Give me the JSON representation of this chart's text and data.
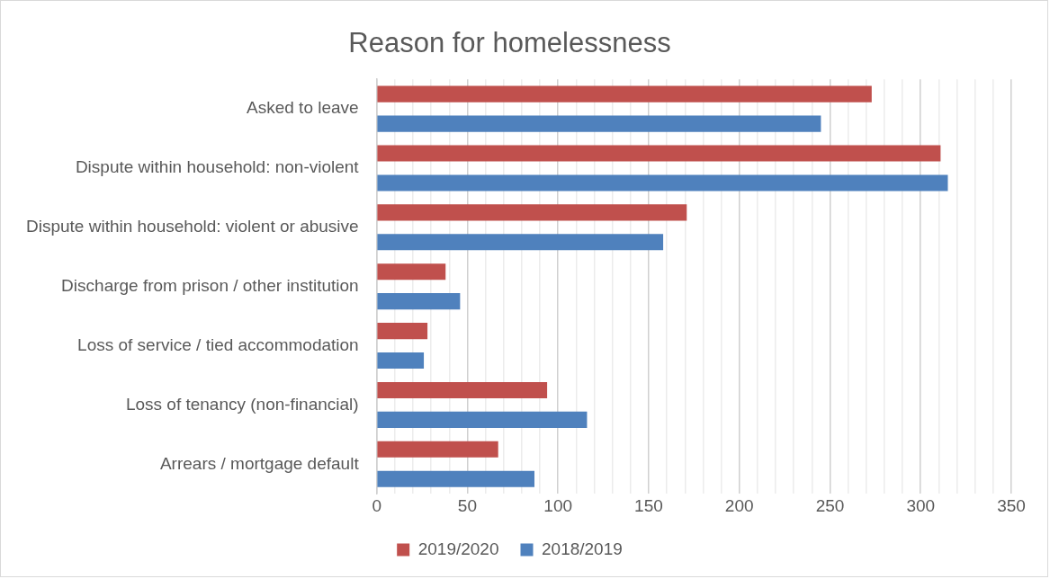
{
  "chart_data": {
    "type": "bar",
    "orientation": "horizontal",
    "title": "Reason for homelessness",
    "categories": [
      "Asked to leave",
      "Dispute within household: non-violent",
      "Dispute within household: violent or abusive",
      "Discharge from prison / other institution",
      "Loss of service / tied accommodation",
      "Loss of tenancy (non-financial)",
      "Arrears / mortgage default"
    ],
    "series": [
      {
        "name": "2019/2020",
        "color": "#c0504d",
        "values": [
          273,
          311,
          171,
          38,
          28,
          94,
          67
        ]
      },
      {
        "name": "2018/2019",
        "color": "#4f81bd",
        "values": [
          245,
          315,
          158,
          46,
          26,
          116,
          87
        ]
      }
    ],
    "xlim": [
      0,
      350
    ],
    "xticks": [
      0,
      {
        "value": 10,
        "label": null
      },
      {
        "value": 20,
        "label": null
      },
      {
        "value": 30,
        "label": null
      },
      {
        "value": 40,
        "label": null
      },
      50,
      {
        "value": 60,
        "label": null
      },
      {
        "value": 70,
        "label": null
      },
      {
        "value": 80,
        "label": null
      },
      {
        "value": 90,
        "label": null
      },
      100,
      {
        "value": 110,
        "label": null
      },
      {
        "value": 120,
        "label": null
      },
      {
        "value": 130,
        "label": null
      },
      {
        "value": 140,
        "label": null
      },
      150,
      {
        "value": 160,
        "label": null
      },
      {
        "value": 170,
        "label": null
      },
      {
        "value": 180,
        "label": null
      },
      {
        "value": 190,
        "label": null
      },
      200,
      {
        "value": 210,
        "label": null
      },
      {
        "value": 220,
        "label": null
      },
      {
        "value": 230,
        "label": null
      },
      {
        "value": 240,
        "label": null
      },
      250,
      {
        "value": 260,
        "label": null
      },
      {
        "value": 270,
        "label": null
      },
      {
        "value": 280,
        "label": null
      },
      {
        "value": 290,
        "label": null
      },
      300,
      {
        "value": 310,
        "label": null
      },
      {
        "value": 320,
        "label": null
      },
      {
        "value": 330,
        "label": null
      },
      {
        "value": 340,
        "label": null
      },
      350
    ],
    "grid": "x",
    "legend": "bottom"
  }
}
